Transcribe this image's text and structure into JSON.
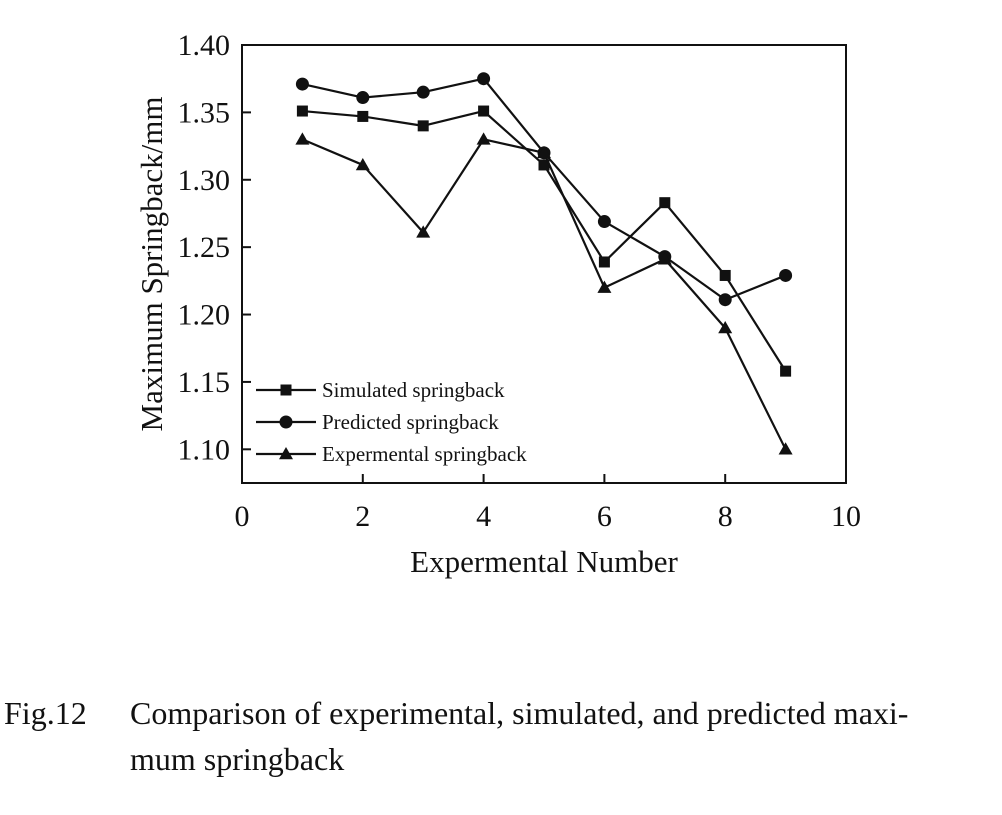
{
  "chart_data": {
    "type": "line",
    "xlabel": "Expermental Number",
    "ylabel": "Maximum Springback/mm",
    "xlim": [
      0,
      10
    ],
    "ylim": [
      1.075,
      1.4
    ],
    "xticks": [
      0,
      2,
      4,
      6,
      8,
      10
    ],
    "xtick_labels": [
      "0",
      "2",
      "4",
      "6",
      "8",
      "10"
    ],
    "yticks": [
      1.1,
      1.15,
      1.2,
      1.25,
      1.3,
      1.35,
      1.4
    ],
    "ytick_labels": [
      "1.10",
      "1.15",
      "1.20",
      "1.25",
      "1.30",
      "1.35",
      "1.40"
    ],
    "x": [
      1,
      2,
      3,
      4,
      5,
      6,
      7,
      8,
      9
    ],
    "series": [
      {
        "name": "Simulated springback",
        "marker": "square",
        "values": [
          1.351,
          1.347,
          1.34,
          1.351,
          1.311,
          1.239,
          1.283,
          1.229,
          1.158
        ]
      },
      {
        "name": "Predicted springback",
        "marker": "circle",
        "values": [
          1.371,
          1.361,
          1.365,
          1.375,
          1.32,
          1.269,
          1.243,
          1.211,
          1.229
        ]
      },
      {
        "name": "Expermental springback",
        "marker": "triangle",
        "values": [
          1.33,
          1.311,
          1.261,
          1.33,
          1.32,
          1.22,
          1.241,
          1.19,
          1.1
        ]
      }
    ],
    "legend_position": "bottom-left",
    "grid": false,
    "line_color": "#111111"
  },
  "caption": {
    "number": "Fig.12",
    "line1": "Comparison of experimental, simulated, and predicted maxi-",
    "line2": "mum springback"
  }
}
